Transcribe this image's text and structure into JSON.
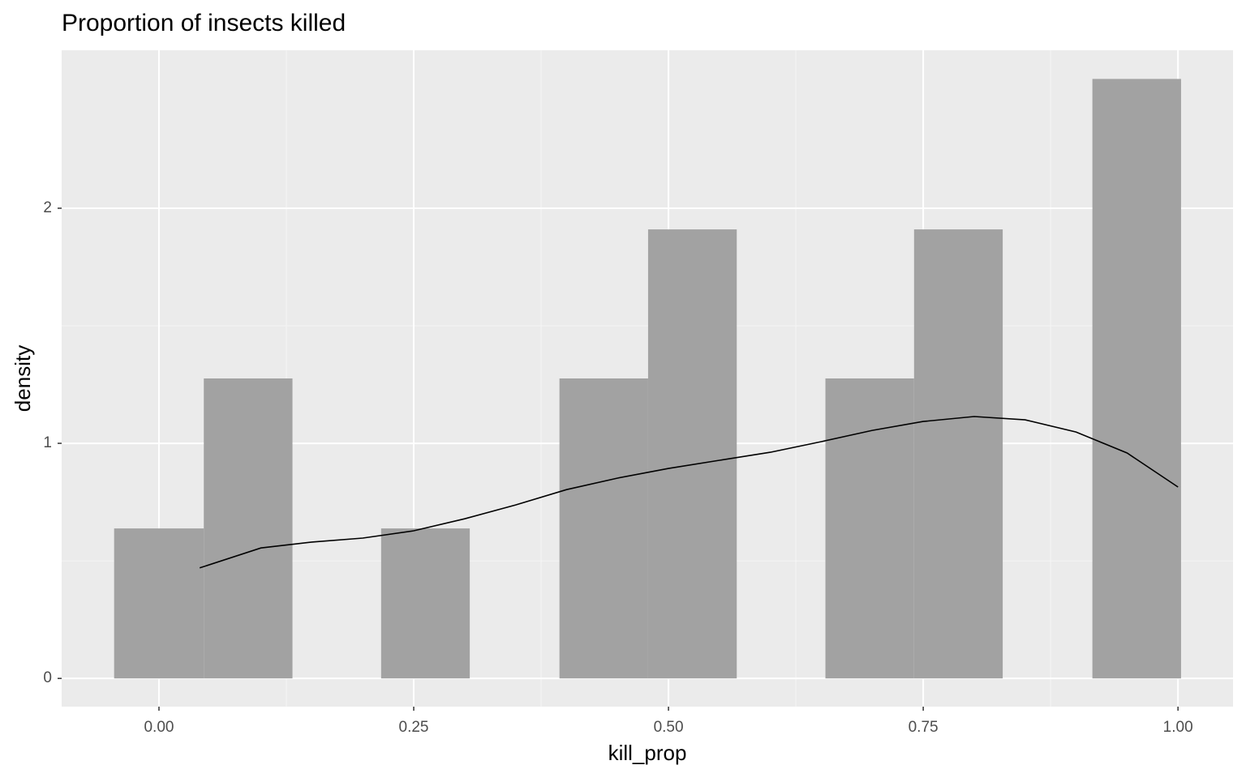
{
  "chart_data": {
    "type": "histogram",
    "title": "Proportion of insects killed",
    "x_label": "kill_prop",
    "y_label": "density",
    "bins": [
      -0.044,
      0.044,
      0.131,
      0.218,
      0.305,
      0.393,
      0.48,
      0.567,
      0.654,
      0.741,
      0.828,
      0.916,
      1.003
    ],
    "values": [
      0.638,
      1.276,
      0,
      0.638,
      0,
      1.276,
      1.91,
      0,
      1.276,
      1.91,
      0,
      2.55
    ],
    "color": "#a2a2a2",
    "density_curve": {
      "color": "#000000",
      "x": [
        0.04,
        0.1,
        0.15,
        0.2,
        0.25,
        0.3,
        0.35,
        0.4,
        0.45,
        0.5,
        0.55,
        0.6,
        0.65,
        0.7,
        0.75,
        0.8,
        0.85,
        0.9,
        0.95,
        1.0
      ],
      "values": [
        0.47,
        0.555,
        0.58,
        0.597,
        0.628,
        0.679,
        0.738,
        0.803,
        0.852,
        0.893,
        0.928,
        0.962,
        1.007,
        1.055,
        1.093,
        1.114,
        1.1,
        1.048,
        0.959,
        0.814
      ]
    },
    "xlim": [
      -0.0955,
      1.054
    ],
    "ylim": [
      -0.12,
      2.672
    ],
    "xticks": [
      {
        "value": 0,
        "label": "0.00"
      },
      {
        "value": 0.25,
        "label": "0.25"
      },
      {
        "value": 0.5,
        "label": "0.50"
      },
      {
        "value": 0.75,
        "label": "0.75"
      },
      {
        "value": 1,
        "label": "1.00"
      }
    ],
    "yticks": [
      0,
      1,
      2
    ],
    "grid": true
  }
}
